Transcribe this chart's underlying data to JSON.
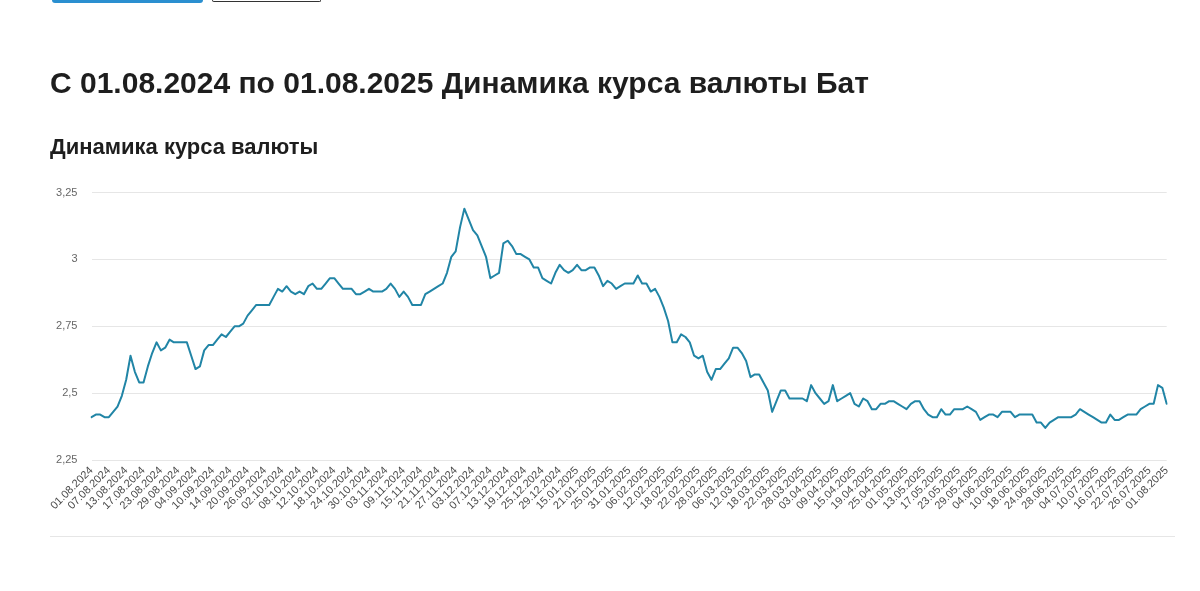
{
  "chart_data": {
    "type": "line",
    "title": "С 01.08.2024 по 01.08.2025 Динамика курса валюты Бат",
    "subtitle": "Динамика курса валюты",
    "categories": [
      "01.08.2024",
      null,
      null,
      null,
      "07.08.2024",
      null,
      null,
      null,
      "13.08.2024",
      null,
      null,
      null,
      "17.08.2024",
      null,
      null,
      null,
      "23.08.2024",
      null,
      null,
      null,
      "29.08.2024",
      null,
      null,
      null,
      "04.09.2024",
      null,
      null,
      null,
      "10.09.2024",
      null,
      null,
      null,
      "14.09.2024",
      null,
      null,
      null,
      "20.09.2024",
      null,
      null,
      null,
      "26.09.2024",
      null,
      null,
      null,
      "02.10.2024",
      null,
      null,
      null,
      "08.10.2024",
      null,
      null,
      null,
      "12.10.2024",
      null,
      null,
      null,
      "18.10.2024",
      null,
      null,
      null,
      "24.10.2024",
      null,
      null,
      null,
      "30.10.2024",
      null,
      null,
      null,
      "03.11.2024",
      null,
      null,
      null,
      "09.11.2024",
      null,
      null,
      null,
      "15.11.2024",
      null,
      null,
      null,
      "21.11.2024",
      null,
      null,
      null,
      "27.11.2024",
      null,
      null,
      null,
      "03.12.2024",
      null,
      null,
      null,
      "07.12.2024",
      null,
      null,
      null,
      "13.12.2024",
      null,
      null,
      null,
      "19.12.2024",
      null,
      null,
      null,
      "25.12.2024",
      null,
      null,
      null,
      "29.12.2024",
      null,
      null,
      null,
      "15.01.2025",
      null,
      null,
      null,
      "21.01.2025",
      null,
      null,
      null,
      "25.01.2025",
      null,
      null,
      null,
      "31.01.2025",
      null,
      null,
      null,
      "06.02.2025",
      null,
      null,
      null,
      "12.02.2025",
      null,
      null,
      null,
      "18.02.2025",
      null,
      null,
      null,
      "22.02.2025",
      null,
      null,
      null,
      "28.02.2025",
      null,
      null,
      null,
      "06.03.2025",
      null,
      null,
      null,
      "12.03.2025",
      null,
      null,
      null,
      "18.03.2025",
      null,
      null,
      null,
      "22.03.2025",
      null,
      null,
      null,
      "28.03.2025",
      null,
      null,
      null,
      "03.04.2025",
      null,
      null,
      null,
      "09.04.2025",
      null,
      null,
      null,
      "15.04.2025",
      null,
      null,
      null,
      "19.04.2025",
      null,
      null,
      null,
      "25.04.2025",
      null,
      null,
      null,
      "01.05.2025",
      null,
      null,
      null,
      "13.05.2025",
      null,
      null,
      null,
      "17.05.2025",
      null,
      null,
      null,
      "23.05.2025",
      null,
      null,
      null,
      "29.05.2025",
      null,
      null,
      null,
      "04.06.2025",
      null,
      null,
      null,
      "10.06.2025",
      null,
      null,
      null,
      "18.06.2025",
      null,
      null,
      null,
      "24.06.2025",
      null,
      null,
      null,
      "28.06.2025",
      null,
      null,
      null,
      "04.07.2025",
      null,
      null,
      null,
      "10.07.2025",
      null,
      null,
      null,
      "16.07.2025",
      null,
      null,
      null,
      "22.07.2025",
      null,
      null,
      null,
      "26.07.2025",
      null,
      null,
      null,
      "01.08.2025"
    ],
    "values": [
      2.41,
      2.42,
      2.42,
      2.41,
      2.41,
      2.43,
      2.45,
      2.49,
      2.55,
      2.64,
      2.58,
      2.54,
      2.54,
      2.6,
      2.65,
      2.69,
      2.66,
      2.67,
      2.7,
      2.69,
      2.69,
      2.69,
      2.69,
      2.64,
      2.59,
      2.6,
      2.66,
      2.68,
      2.68,
      2.7,
      2.72,
      2.71,
      2.73,
      2.75,
      2.75,
      2.76,
      2.79,
      2.81,
      2.83,
      2.83,
      2.83,
      2.83,
      2.86,
      2.89,
      2.88,
      2.9,
      2.88,
      2.87,
      2.88,
      2.87,
      2.9,
      2.91,
      2.89,
      2.89,
      2.91,
      2.93,
      2.93,
      2.91,
      2.89,
      2.89,
      2.89,
      2.87,
      2.87,
      2.88,
      2.89,
      2.88,
      2.88,
      2.88,
      2.89,
      2.91,
      2.89,
      2.86,
      2.88,
      2.86,
      2.83,
      2.83,
      2.83,
      2.87,
      2.88,
      2.89,
      2.9,
      2.91,
      2.95,
      3.01,
      3.03,
      3.12,
      3.19,
      3.15,
      3.11,
      3.09,
      3.05,
      3.01,
      2.93,
      2.94,
      2.95,
      3.06,
      3.07,
      3.05,
      3.02,
      3.02,
      3.01,
      3.0,
      2.97,
      2.97,
      2.93,
      2.92,
      2.91,
      2.95,
      2.98,
      2.96,
      2.95,
      2.96,
      2.98,
      2.96,
      2.96,
      2.97,
      2.97,
      2.94,
      2.9,
      2.92,
      2.91,
      2.89,
      2.9,
      2.91,
      2.91,
      2.91,
      2.94,
      2.91,
      2.91,
      2.88,
      2.89,
      2.86,
      2.82,
      2.77,
      2.69,
      2.69,
      2.72,
      2.71,
      2.69,
      2.64,
      2.63,
      2.64,
      2.58,
      2.55,
      2.59,
      2.59,
      2.61,
      2.63,
      2.67,
      2.67,
      2.65,
      2.62,
      2.56,
      2.57,
      2.57,
      2.54,
      2.51,
      2.43,
      2.47,
      2.51,
      2.51,
      2.48,
      2.48,
      2.48,
      2.48,
      2.47,
      2.53,
      2.5,
      2.48,
      2.46,
      2.47,
      2.53,
      2.47,
      2.48,
      2.49,
      2.5,
      2.46,
      2.45,
      2.48,
      2.47,
      2.44,
      2.44,
      2.46,
      2.46,
      2.47,
      2.47,
      2.46,
      2.45,
      2.44,
      2.46,
      2.47,
      2.47,
      2.44,
      2.42,
      2.41,
      2.41,
      2.44,
      2.42,
      2.42,
      2.44,
      2.44,
      2.44,
      2.45,
      2.44,
      2.43,
      2.4,
      2.41,
      2.42,
      2.42,
      2.41,
      2.43,
      2.43,
      2.43,
      2.41,
      2.42,
      2.42,
      2.42,
      2.42,
      2.39,
      2.39,
      2.37,
      2.39,
      2.4,
      2.41,
      2.41,
      2.41,
      2.41,
      2.42,
      2.44,
      2.43,
      2.42,
      2.41,
      2.4,
      2.39,
      2.39,
      2.42,
      2.4,
      2.4,
      2.41,
      2.42,
      2.42,
      2.42,
      2.44,
      2.45,
      2.46,
      2.46,
      2.53,
      2.52,
      2.46
    ],
    "color": "#2185a6",
    "ylim": [
      2.25,
      3.25
    ],
    "yticks": [
      {
        "value": 2.25,
        "label": "2,25"
      },
      {
        "value": 2.5,
        "label": "2,5"
      },
      {
        "value": 2.75,
        "label": "2,75"
      },
      3,
      {
        "value": 3.25,
        "label": "3,25"
      }
    ],
    "grid": "y",
    "marker": "none"
  }
}
